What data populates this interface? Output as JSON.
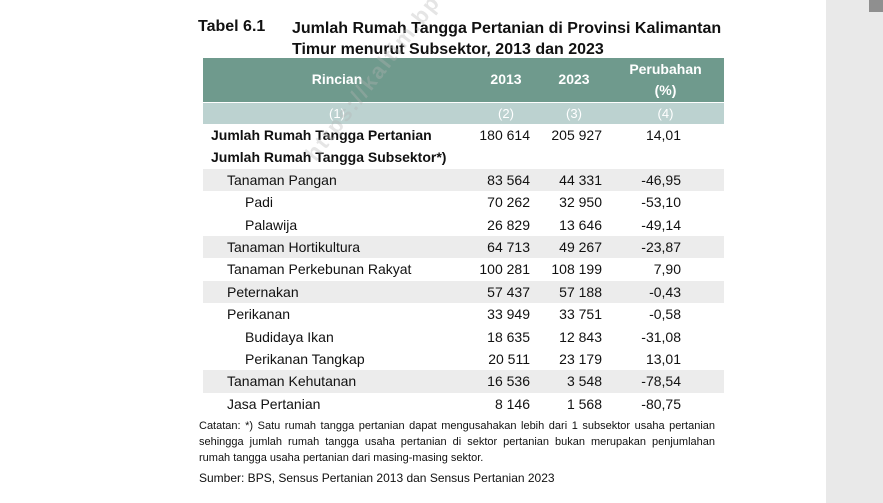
{
  "title": {
    "number": "Tabel 6.1",
    "text": "Jumlah Rumah Tangga Pertanian di Provinsi Kalimantan Timur menurut Subsektor, 2013 dan 2023"
  },
  "table": {
    "headers": {
      "rincian": "Rincian",
      "y2013": "2013",
      "y2023": "2023",
      "perubahan": "Perubahan",
      "percent": "(%)"
    },
    "col_numbers": [
      "(1)",
      "(2)",
      "(3)",
      "(4)"
    ],
    "rows": [
      {
        "label": "Jumlah Rumah Tangga Pertanian",
        "level": 0,
        "v2013": "180 614",
        "v2023": "205 927",
        "change": "14,01",
        "shade": false
      },
      {
        "label": "Jumlah Rumah Tangga Subsektor*)",
        "level": 0,
        "v2013": "",
        "v2023": "",
        "change": "",
        "shade": false
      },
      {
        "label": "Tanaman Pangan",
        "level": 1,
        "v2013": "83 564",
        "v2023": "44 331",
        "change": "-46,95",
        "shade": true
      },
      {
        "label": "Padi",
        "level": 2,
        "v2013": "70 262",
        "v2023": "32 950",
        "change": "-53,10",
        "shade": false
      },
      {
        "label": "Palawija",
        "level": 2,
        "v2013": "26 829",
        "v2023": "13 646",
        "change": "-49,14",
        "shade": false
      },
      {
        "label": "Tanaman Hortikultura",
        "level": 1,
        "v2013": "64 713",
        "v2023": "49 267",
        "change": "-23,87",
        "shade": true
      },
      {
        "label": "Tanaman Perkebunan Rakyat",
        "level": 1,
        "v2013": "100 281",
        "v2023": "108 199",
        "change": "7,90",
        "shade": false
      },
      {
        "label": "Peternakan",
        "level": 1,
        "v2013": "57 437",
        "v2023": "57 188",
        "change": "-0,43",
        "shade": true
      },
      {
        "label": "Perikanan",
        "level": 1,
        "v2013": "33 949",
        "v2023": "33 751",
        "change": "-0,58",
        "shade": false
      },
      {
        "label": "Budidaya Ikan",
        "level": 2,
        "v2013": "18 635",
        "v2023": "12 843",
        "change": "-31,08",
        "shade": false
      },
      {
        "label": "Perikanan Tangkap",
        "level": 2,
        "v2013": "20 511",
        "v2023": "23 179",
        "change": "13,01",
        "shade": false
      },
      {
        "label": "Tanaman Kehutanan",
        "level": 1,
        "v2013": "16 536",
        "v2023": "3 548",
        "change": "-78,54",
        "shade": true
      },
      {
        "label": "Jasa Pertanian",
        "level": 1,
        "v2013": "8 146",
        "v2023": "1 568",
        "change": "-80,75",
        "shade": false
      }
    ]
  },
  "notes": "Catatan: *) Satu rumah tangga pertanian dapat mengusahakan lebih dari 1 subsektor usaha pertanian sehingga jumlah rumah tangga usaha pertanian di sektor pertanian bukan merupakan penjumlahan rumah tangga usaha pertanian dari masing-masing sektor.",
  "source": "Sumber: BPS, Sensus Pertanian 2013 dan Sensus Pertanian 2023",
  "watermark": "https://kaltim.bps.go.id"
}
